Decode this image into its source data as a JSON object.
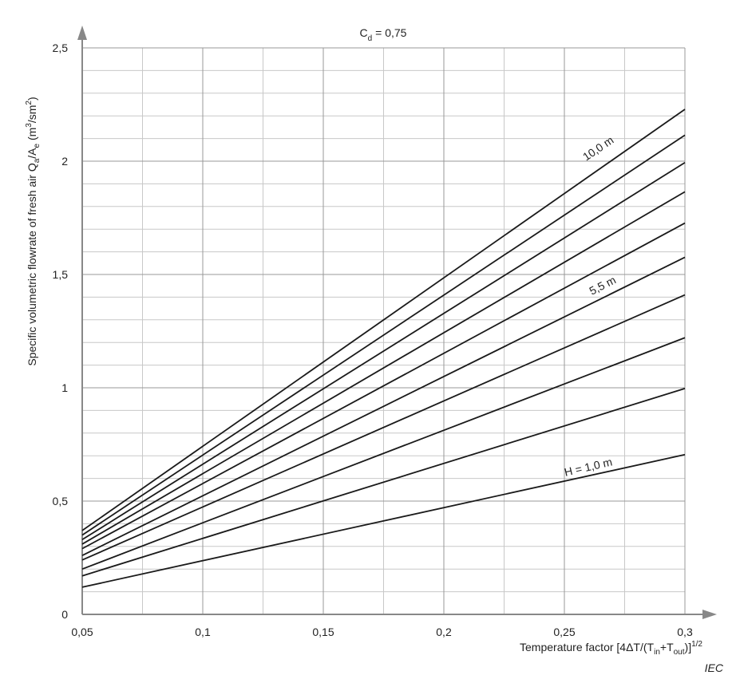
{
  "chart_data": {
    "type": "line",
    "title": [
      "C",
      "d",
      " = 0,75"
    ],
    "x_label": [
      "Temperature factor  [4ΔT/(T",
      "in",
      "+T",
      "out",
      ")]",
      "1/2"
    ],
    "y_label": [
      "Specific volumetric flowrate of fresh air Q",
      "a",
      "/A",
      "e",
      "  (m",
      "3",
      "/sm",
      "2",
      ")"
    ],
    "source": "IEC",
    "x": [
      0.05,
      0.3
    ],
    "series": [
      {
        "color": "#1a1a1a",
        "values": [
          0.12,
          0.705
        ]
      },
      {
        "color": "#1a1a1a",
        "values": [
          0.17,
          0.997
        ]
      },
      {
        "color": "#1a1a1a",
        "values": [
          0.2,
          1.221
        ]
      },
      {
        "color": "#1a1a1a",
        "values": [
          0.24,
          1.41
        ]
      },
      {
        "color": "#1a1a1a",
        "values": [
          0.26,
          1.576
        ]
      },
      {
        "color": "#1a1a1a",
        "values": [
          0.29,
          1.727
        ]
      },
      {
        "color": "#1a1a1a",
        "values": [
          0.31,
          1.865
        ]
      },
      {
        "color": "#1a1a1a",
        "values": [
          0.33,
          1.994
        ]
      },
      {
        "color": "#1a1a1a",
        "values": [
          0.35,
          2.115
        ]
      },
      {
        "color": "#1a1a1a",
        "values": [
          0.37,
          2.229
        ]
      }
    ],
    "annotations": [
      "10,0   m",
      "5,5 m",
      "H = 1,0 m"
    ],
    "xlim": [
      0.05,
      0.3
    ],
    "ylim": [
      0,
      2.5
    ],
    "xticks": [
      {
        "value": 0.05,
        "label": "0,05"
      },
      {
        "value": 0.1,
        "label": "0,1"
      },
      {
        "value": 0.15,
        "label": "0,15"
      },
      {
        "value": 0.2,
        "label": "0,2"
      },
      {
        "value": 0.25,
        "label": "0,25"
      },
      {
        "value": 0.3,
        "label": "0,3"
      }
    ],
    "yticks": [
      0,
      {
        "value": 0.5,
        "label": "0,5"
      },
      1,
      {
        "value": 1.5,
        "label": "1,5"
      },
      2,
      {
        "value": 2.5,
        "label": "2,5"
      }
    ],
    "minor_xticks": [
      0.075,
      0.125,
      0.175,
      0.225,
      0.275
    ],
    "minor_yticks": [
      0.1,
      0.2,
      0.3,
      0.4,
      0.6,
      0.7,
      0.8,
      0.9,
      1.1,
      1.2,
      1.3,
      1.4,
      1.6,
      1.7,
      1.8,
      1.9,
      2.1,
      2.2,
      2.3,
      2.4
    ],
    "grid": true
  }
}
